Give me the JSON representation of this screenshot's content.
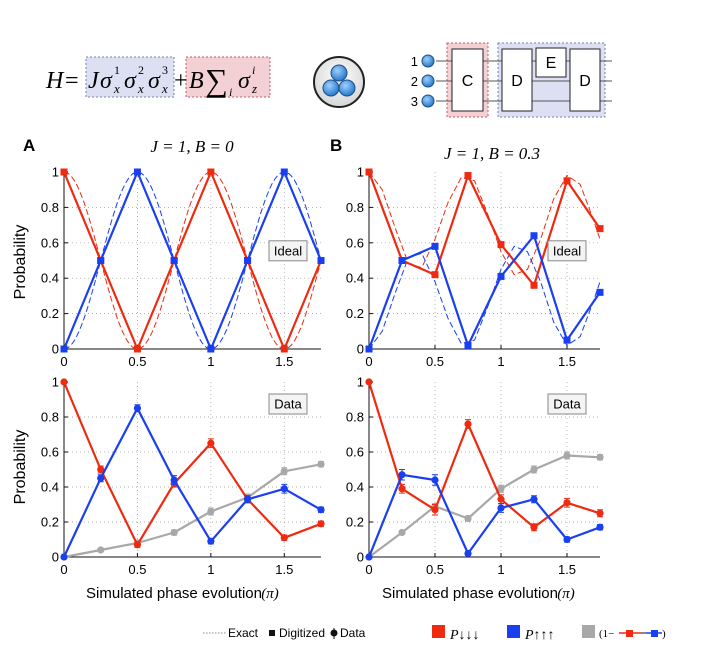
{
  "header": {
    "hamiltonian": {
      "lhs": "H",
      "eq": "=",
      "j_term": "J",
      "sigma": "σ",
      "sub": "x",
      "sups": [
        "1",
        "2",
        "3"
      ],
      "plus": "+",
      "b_term": "B",
      "sum": "∑",
      "sum_sub": "i",
      "z_sub": "z",
      "z_sup": "i"
    },
    "circuit": {
      "qubit_labels": [
        "1",
        "2",
        "3"
      ],
      "gates": [
        "C",
        "D",
        "E",
        "D"
      ]
    }
  },
  "panels": [
    {
      "letter": "A",
      "title": "J = 1, B = 0"
    },
    {
      "letter": "B",
      "title": "J = 1, B = 0.3"
    }
  ],
  "axes": {
    "ylabel": "Probability",
    "xlabel": "Simulated phase evolution",
    "xunit": "(π)",
    "xticks": [
      "0",
      "0.5",
      "1",
      "1.5"
    ],
    "yticks": [
      "0",
      "0.2",
      "0.4",
      "0.6",
      "0.8",
      "1"
    ]
  },
  "legend": {
    "exact": "Exact",
    "digitized": "Digitized",
    "data": "Data",
    "p_down": "P↓↓↓",
    "p_up": "P↑↑↑",
    "p_rest": "(1−",
    "p_rest_end": ")"
  },
  "colors": {
    "red": "#ee2a10",
    "blue": "#1a3ff0",
    "gray": "#a8a8a8",
    "ideal_bg": "#dde0f2",
    "ideal_border": "#7a7fb0",
    "pink": "#f2d0d3",
    "pink_border": "#c85a64"
  },
  "chart_data": [
    {
      "type": "line",
      "panel": "A",
      "row": "Ideal",
      "label": "Ideal",
      "xlim": [
        0,
        1.75
      ],
      "ylim": [
        0,
        1
      ],
      "x": [
        0,
        0.25,
        0.5,
        0.75,
        1.0,
        1.25,
        1.5,
        1.75
      ],
      "series": [
        {
          "name": "P↓↓↓ digitized",
          "values": [
            1,
            0.5,
            0,
            0.5,
            1,
            0.5,
            0,
            0.5
          ]
        },
        {
          "name": "P↑↑↑ digitized",
          "values": [
            0,
            0.5,
            1,
            0.5,
            0,
            0.5,
            1,
            0.5
          ]
        }
      ],
      "exact": [
        {
          "name": "P↓↓↓ exact",
          "function": "cos^2(pi x)"
        },
        {
          "name": "P↑↑↑ exact",
          "function": "sin^2(pi x)"
        }
      ]
    },
    {
      "type": "line",
      "panel": "B",
      "row": "Ideal",
      "label": "Ideal",
      "xlim": [
        0,
        1.75
      ],
      "ylim": [
        0,
        1
      ],
      "x": [
        0,
        0.25,
        0.5,
        0.75,
        1.0,
        1.25,
        1.5,
        1.75
      ],
      "series": [
        {
          "name": "P↓↓↓ digitized",
          "values": [
            1,
            0.5,
            0.42,
            0.98,
            0.59,
            0.36,
            0.95,
            0.68
          ]
        },
        {
          "name": "P↑↑↑ digitized",
          "values": [
            0,
            0.5,
            0.58,
            0.02,
            0.41,
            0.64,
            0.05,
            0.32
          ]
        }
      ],
      "exact": [
        {
          "name": "P↓↓↓ exact",
          "x": [
            0,
            0.1,
            0.2,
            0.3,
            0.4,
            0.5,
            0.6,
            0.7,
            0.8,
            0.9,
            1.0,
            1.1,
            1.2,
            1.3,
            1.4,
            1.5,
            1.6,
            1.7,
            1.75
          ],
          "values": [
            1,
            0.9,
            0.68,
            0.48,
            0.46,
            0.62,
            0.83,
            0.97,
            0.95,
            0.76,
            0.55,
            0.42,
            0.45,
            0.62,
            0.85,
            0.98,
            0.93,
            0.73,
            0.62
          ]
        },
        {
          "name": "P↑↑↑ exact",
          "x": [
            0,
            0.1,
            0.2,
            0.3,
            0.4,
            0.5,
            0.6,
            0.7,
            0.8,
            0.9,
            1.0,
            1.1,
            1.2,
            1.3,
            1.4,
            1.5,
            1.6,
            1.7,
            1.75
          ],
          "values": [
            0,
            0.1,
            0.32,
            0.52,
            0.54,
            0.38,
            0.17,
            0.03,
            0.05,
            0.24,
            0.45,
            0.58,
            0.55,
            0.38,
            0.15,
            0.02,
            0.07,
            0.27,
            0.38
          ]
        }
      ]
    },
    {
      "type": "line",
      "panel": "A",
      "row": "Data",
      "label": "Data",
      "xlim": [
        0,
        1.75
      ],
      "ylim": [
        0,
        1
      ],
      "x": [
        0,
        0.25,
        0.5,
        0.75,
        1.0,
        1.25,
        1.5,
        1.75
      ],
      "series": [
        {
          "name": "P↓↓↓ data",
          "values": [
            1,
            0.5,
            0.07,
            0.42,
            0.65,
            0.33,
            0.11,
            0.19
          ],
          "errors": [
            0,
            0.02,
            0.015,
            0.02,
            0.025,
            0.02,
            0.015,
            0.015
          ]
        },
        {
          "name": "P↑↑↑ data",
          "values": [
            0,
            0.45,
            0.85,
            0.44,
            0.09,
            0.33,
            0.39,
            0.27
          ],
          "errors": [
            0,
            0.02,
            0.02,
            0.025,
            0.015,
            0.02,
            0.025,
            0.015
          ]
        },
        {
          "name": "1 − (P↓↓↓ + P↑↑↑)",
          "values": [
            0,
            0.04,
            0.08,
            0.14,
            0.26,
            0.34,
            0.49,
            0.53
          ],
          "errors": [
            0,
            0.01,
            0.01,
            0.015,
            0.02,
            0.02,
            0.02,
            0.015
          ]
        }
      ]
    },
    {
      "type": "line",
      "panel": "B",
      "row": "Data",
      "label": "Data",
      "xlim": [
        0,
        1.75
      ],
      "ylim": [
        0,
        1
      ],
      "x": [
        0,
        0.25,
        0.5,
        0.75,
        1.0,
        1.25,
        1.5,
        1.75
      ],
      "series": [
        {
          "name": "P↓↓↓ data",
          "values": [
            1,
            0.39,
            0.27,
            0.76,
            0.33,
            0.17,
            0.31,
            0.25
          ],
          "errors": [
            0,
            0.025,
            0.03,
            0.025,
            0.025,
            0.02,
            0.025,
            0.02
          ]
        },
        {
          "name": "P↑↑↑ data",
          "values": [
            0,
            0.47,
            0.44,
            0.02,
            0.28,
            0.33,
            0.1,
            0.17
          ],
          "errors": [
            0,
            0.03,
            0.03,
            0.01,
            0.025,
            0.02,
            0.015,
            0.015
          ]
        },
        {
          "name": "1 − (P↓↓↓ + P↑↑↑)",
          "values": [
            0,
            0.14,
            0.29,
            0.22,
            0.39,
            0.5,
            0.58,
            0.57
          ],
          "errors": [
            0,
            0.01,
            0.015,
            0.015,
            0.02,
            0.02,
            0.02,
            0.015
          ]
        }
      ]
    }
  ]
}
